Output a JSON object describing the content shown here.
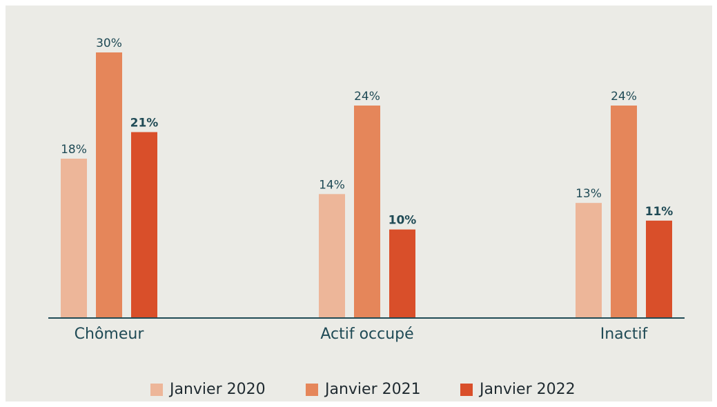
{
  "chart_data": {
    "type": "bar",
    "categories": [
      "Chômeur",
      "Actif occupé",
      "Inactif"
    ],
    "series": [
      {
        "name": "Janvier 2020",
        "color": "#edb699",
        "values": [
          18,
          14,
          13
        ],
        "value_labels": [
          "18%",
          "14%",
          "13%"
        ]
      },
      {
        "name": "Janvier 2021",
        "color": "#e5865a",
        "values": [
          30,
          24,
          24
        ],
        "value_labels": [
          "30%",
          "24%",
          "24%"
        ]
      },
      {
        "name": "Janvier 2022",
        "color": "#d94f2a",
        "values": [
          21,
          10,
          11
        ],
        "value_labels": [
          "21%",
          "10%",
          "11%"
        ],
        "label_bold": true
      }
    ],
    "ylim": [
      0,
      30
    ],
    "legend": "bottom"
  }
}
